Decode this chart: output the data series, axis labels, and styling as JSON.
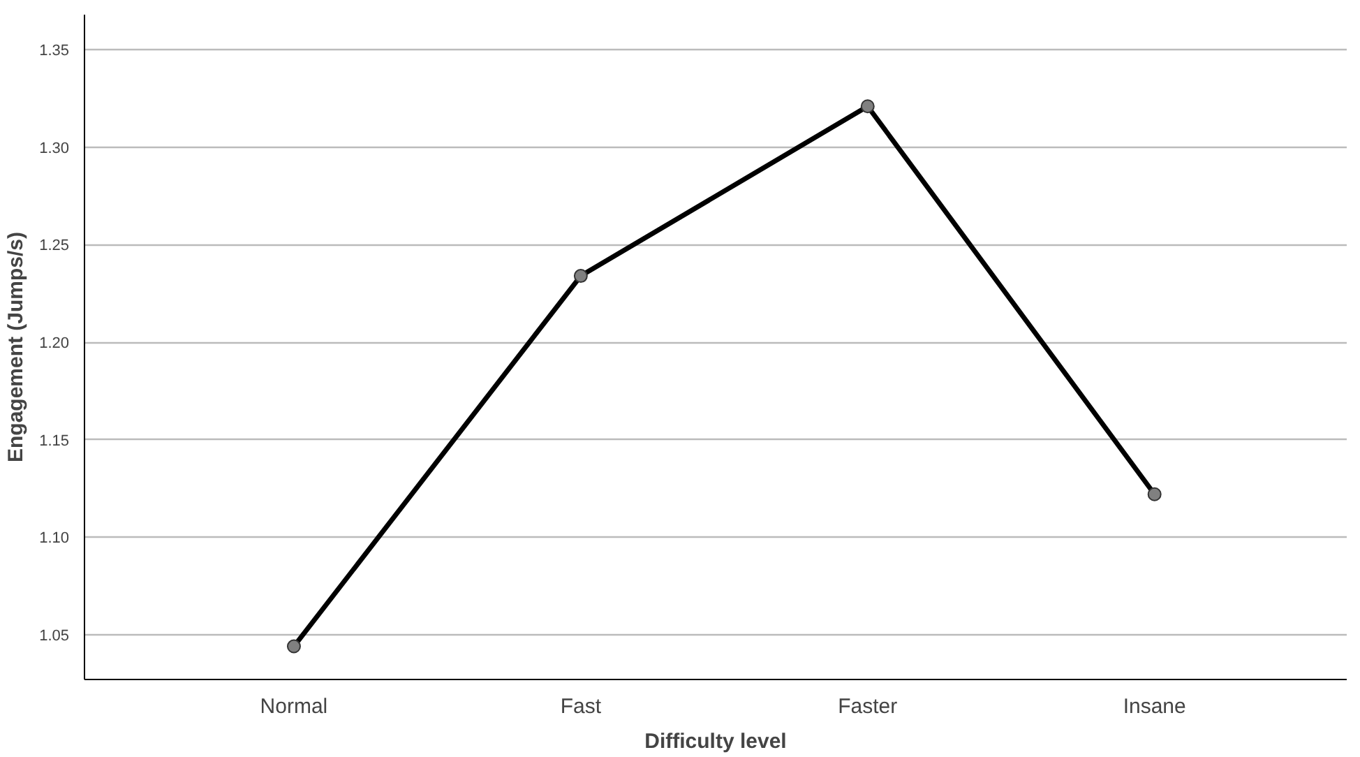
{
  "chart_data": {
    "type": "line",
    "xlabel": "Difficulty level",
    "ylabel": "Engagement (Jumps/s)",
    "categories": [
      "Normal",
      "Fast",
      "Faster",
      "Insane"
    ],
    "series": [
      {
        "color": "#000000",
        "values": [
          1.044,
          1.234,
          1.321,
          1.122
        ]
      }
    ],
    "ylim": [
      1.027,
      1.368
    ],
    "yticks": [
      {
        "value": 1.05,
        "label": "1.05"
      },
      {
        "value": 1.1,
        "label": "1.10"
      },
      {
        "value": 1.15,
        "label": "1.15"
      },
      {
        "value": 1.2,
        "label": "1.20"
      },
      {
        "value": 1.25,
        "label": "1.25"
      },
      {
        "value": 1.3,
        "label": "1.30"
      },
      {
        "value": 1.35,
        "label": "1.35"
      }
    ],
    "grid": "y",
    "marker": "circle",
    "line_style": "solid"
  }
}
